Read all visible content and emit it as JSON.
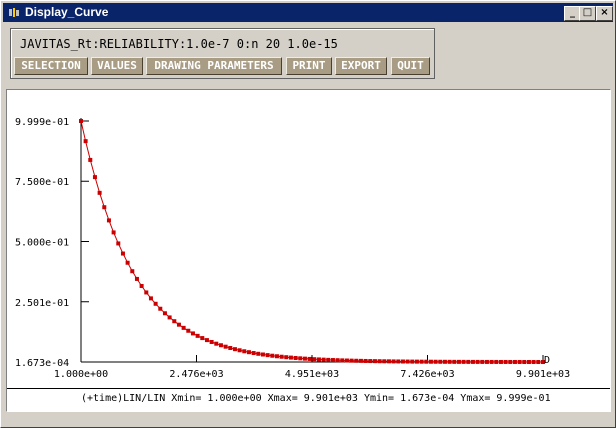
{
  "window": {
    "title": "Display_Curve",
    "minimize_symbol": "_",
    "maximize_symbol": "□",
    "close_symbol": "×"
  },
  "header": {
    "curve_id": "JAVITAS_Rt:RELIABILITY:1.0e-7 0:n 20 1.0e-15",
    "buttons": {
      "selection": "SELECTION",
      "values": "VALUES",
      "drawing_parameters": "DRAWING PARAMETERS",
      "print": "PRINT",
      "export": "EXPORT",
      "quit": "QUIT"
    },
    "button_color": "#a89c84"
  },
  "status": {
    "text": "(+time)LIN/LIN Xmin= 1.000e+00 Xmax= 9.901e+03 Ymin= 1.673e-04 Ymax= 9.999e-01"
  },
  "chart_data": {
    "type": "line",
    "xscale": "linear",
    "yscale": "linear",
    "xlim": [
      1.0,
      9901.0
    ],
    "ylim": [
      0.0001673,
      0.9999
    ],
    "x_ticks": [
      1.0,
      2476.0,
      4951.0,
      7426.0,
      9901.0
    ],
    "x_tick_labels": [
      "1.000e+00",
      "2.476e+03",
      "4.951e+03",
      "7.426e+03",
      "9.901e+03"
    ],
    "y_ticks": [
      0.0001673,
      0.2501,
      0.5,
      0.75,
      0.9999
    ],
    "y_tick_labels": [
      "1.673e-04",
      "2.501e-01",
      "5.000e-01",
      "7.500e-01",
      "9.999e-01"
    ],
    "end_marker_label": "D",
    "series_color": "#cc0000",
    "series": [
      {
        "values_x": [
          1,
          100,
          200,
          300,
          400,
          500,
          600,
          700,
          800,
          900,
          1000,
          1100,
          1200,
          1300,
          1400,
          1500,
          1600,
          1700,
          1800,
          1900,
          2000,
          2100,
          2200,
          2300,
          2400,
          2500,
          2600,
          2700,
          2800,
          2900,
          3000,
          3100,
          3200,
          3300,
          3400,
          3500,
          3600,
          3700,
          3800,
          3900,
          4000,
          4100,
          4200,
          4300,
          4400,
          4500,
          4600,
          4700,
          4800,
          4900,
          5000,
          5100,
          5200,
          5300,
          5400,
          5500,
          5600,
          5700,
          5800,
          5900,
          6000,
          6100,
          6200,
          6300,
          6400,
          6500,
          6600,
          6700,
          6800,
          6900,
          7000,
          7100,
          7200,
          7300,
          7400,
          7500,
          7600,
          7700,
          7800,
          7900,
          8000,
          8100,
          8200,
          8300,
          8400,
          8500,
          8600,
          8700,
          8800,
          8900,
          9000,
          9100,
          9200,
          9300,
          9400,
          9500,
          9600,
          9700,
          9800,
          9901
        ],
        "values_y": [
          0.9999,
          0.9163,
          0.8384,
          0.7671,
          0.7019,
          0.6422,
          0.5876,
          0.5377,
          0.492,
          0.4501,
          0.4119,
          0.3768,
          0.3448,
          0.3155,
          0.2887,
          0.2641,
          0.2417,
          0.2211,
          0.2023,
          0.1851,
          0.1694,
          0.155,
          0.1418,
          0.1298,
          0.1187,
          0.1086,
          0.0994,
          0.091,
          0.0832,
          0.0761,
          0.0697,
          0.0637,
          0.0583,
          0.0534,
          0.0488,
          0.0447,
          0.0409,
          0.0374,
          0.0342,
          0.0313,
          0.0287,
          0.0262,
          0.024,
          0.022,
          0.0201,
          0.0184,
          0.0168,
          0.0154,
          0.0141,
          0.0129,
          0.0118,
          0.0108,
          0.0099,
          0.009,
          0.0083,
          0.0076,
          0.0069,
          0.0063,
          0.0058,
          0.0053,
          0.0049,
          0.0045,
          0.0041,
          0.0037,
          0.0034,
          0.0031,
          0.0029,
          0.0026,
          0.0024,
          0.0022,
          0.002,
          0.0018,
          0.0017,
          0.0015,
          0.0014,
          0.0013,
          0.0012,
          0.0011,
          0.001,
          0.0009,
          0.0008,
          0.00077,
          0.0007,
          0.00064,
          0.00059,
          0.00054,
          0.00049,
          0.00045,
          0.00041,
          0.00038,
          0.00035,
          0.00032,
          0.00029,
          0.00027,
          0.00024,
          0.00022,
          0.0002,
          0.00019,
          0.00017,
          0.0001673
        ]
      }
    ]
  }
}
